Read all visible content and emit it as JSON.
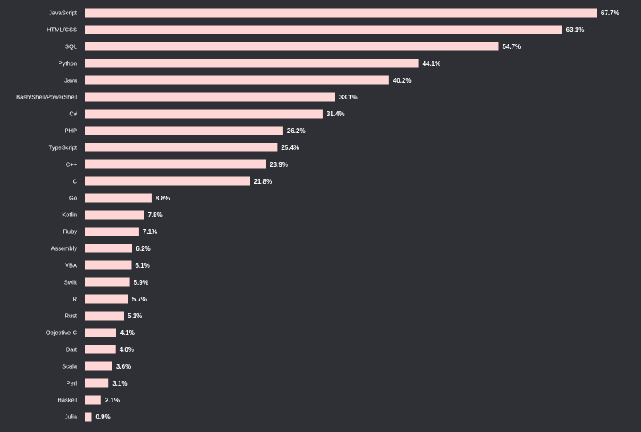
{
  "chart_data": {
    "type": "bar",
    "orientation": "horizontal",
    "title": "",
    "xlabel": "",
    "ylabel": "",
    "categories": [
      "JavaScript",
      "HTML/CSS",
      "SQL",
      "Python",
      "Java",
      "Bash/Shell/PowerShell",
      "C#",
      "PHP",
      "TypeScript",
      "C++",
      "C",
      "Go",
      "Kotlin",
      "Ruby",
      "Assembly",
      "VBA",
      "Swift",
      "R",
      "Rust",
      "Objective-C",
      "Dart",
      "Scala",
      "Perl",
      "Haskell",
      "Julia"
    ],
    "values": [
      67.7,
      63.1,
      54.7,
      44.1,
      40.2,
      33.1,
      31.4,
      26.2,
      25.4,
      23.9,
      21.8,
      8.8,
      7.8,
      7.1,
      6.2,
      6.1,
      5.9,
      5.7,
      5.1,
      4.1,
      4.0,
      3.6,
      3.1,
      2.1,
      0.9
    ],
    "value_labels": [
      "67.7%",
      "63.1%",
      "54.7%",
      "44.1%",
      "40.2%",
      "33.1%",
      "31.4%",
      "26.2%",
      "25.4%",
      "23.9%",
      "21.8%",
      "8.8%",
      "7.8%",
      "7.1%",
      "6.2%",
      "6.1%",
      "5.9%",
      "5.7%",
      "5.1%",
      "4.1%",
      "4.0%",
      "3.6%",
      "3.1%",
      "2.1%",
      "0.9%"
    ],
    "unit": "%",
    "grid": false,
    "legend": "none",
    "colors": {
      "background": "#2f3035",
      "bar": "#ffd6d6",
      "text": "#ffffff"
    }
  }
}
